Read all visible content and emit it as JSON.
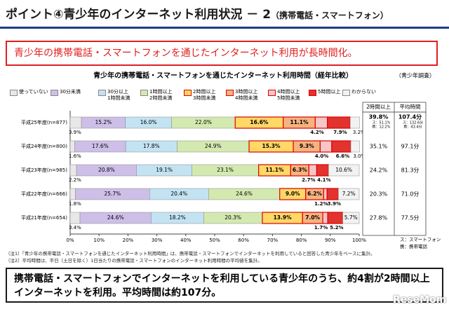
{
  "header": {
    "title": "ポイント④青少年のインターネット利用状況 － 2",
    "subtitle": "（携帯電話・スマートフォン）"
  },
  "headline": "青少年の携帯電話・スマートフォンを通じたインターネット利用が長時間化。",
  "chart_data": {
    "type": "bar",
    "orientation": "horizontal",
    "stacked": true,
    "title": "青少年の携帯電話・スマートフォンを通じたインターネット利用時間（経年比較）",
    "source": "（青少年調査）",
    "categories": [
      "平成25年度(n=877)",
      "平成24年度(n=800)",
      "平成23年度(n=985)",
      "平成22年度(n=666)",
      "平成21年度(n=654)"
    ],
    "series": [
      {
        "name": "使っていない",
        "color": "#e8e8e8",
        "values": [
          3.9,
          1.6,
          2.2,
          1.8,
          3.4
        ],
        "value_labels": [
          "3.9%",
          "1.6%",
          "2.2%",
          "1.8%",
          "3.4%"
        ]
      },
      {
        "name": "30分未満",
        "color": "#cdbfe8",
        "values": [
          15.2,
          17.6,
          20.8,
          25.7,
          24.6
        ],
        "value_labels": [
          "15.2%",
          "17.6%",
          "20.8%",
          "25.7%",
          "24.6%"
        ]
      },
      {
        "name": "30分以上\n1時間未満",
        "color": "#c3e3f3",
        "values": [
          16.0,
          17.8,
          19.1,
          20.4,
          18.2
        ],
        "value_labels": [
          "16.0%",
          "17.8%",
          "19.1%",
          "20.4%",
          "18.2%"
        ]
      },
      {
        "name": "1時間以上\n2時間未満",
        "color": "#d3e9b0",
        "values": [
          22.0,
          24.9,
          23.1,
          24.6,
          20.3
        ],
        "value_labels": [
          "22.0%",
          "24.9%",
          "23.1%",
          "24.6%",
          "20.3%"
        ]
      },
      {
        "name": "2時間以上\n3時間未満",
        "color": "#ffd866",
        "values": [
          16.6,
          15.3,
          11.1,
          9.0,
          13.9
        ],
        "value_labels": [
          "16.6%",
          "15.3%",
          "11.1%",
          "9.0%",
          "13.9%"
        ]
      },
      {
        "name": "3時間以上\n4時間未満",
        "color": "#f6b37f",
        "values": [
          11.1,
          9.3,
          6.3,
          6.2,
          7.0
        ],
        "value_labels": [
          "11.1%",
          "9.3%",
          "6.3%",
          "6.2%",
          "7.0%"
        ]
      },
      {
        "name": "4時間以上\n5時間未満",
        "color": "#f7c6c6",
        "values": [
          4.2,
          4.0,
          2.7,
          1.2,
          1.7
        ],
        "value_labels": [
          "4.2%",
          "4.0%",
          "2.7%",
          "1.2%",
          "1.7%"
        ]
      },
      {
        "name": "5時間以上",
        "color": "#e2332f",
        "values": [
          7.9,
          6.6,
          4.1,
          3.9,
          5.2
        ],
        "value_labels": [
          "7.9%",
          "6.6%",
          "4.1%",
          "3.9%",
          "5.2%"
        ]
      },
      {
        "name": "わからない",
        "color": "#f2f2f2",
        "values": [
          3.2,
          3.0,
          10.6,
          7.2,
          5.7
        ],
        "value_labels": [
          "3.2%",
          "3.0%",
          "10.6%",
          "7.2%",
          "5.7%"
        ]
      }
    ],
    "xlim": [
      0,
      100
    ],
    "xticks": [
      {
        "value": 0,
        "label": "0%"
      },
      {
        "value": 10,
        "label": "10%"
      },
      {
        "value": 20,
        "label": "20%"
      },
      {
        "value": 30,
        "label": "30%"
      },
      {
        "value": 40,
        "label": "40%"
      },
      {
        "value": 50,
        "label": "50%"
      },
      {
        "value": 60,
        "label": "60%"
      },
      {
        "value": 70,
        "label": "70%"
      },
      {
        "value": 80,
        "label": "80%"
      },
      {
        "value": 90,
        "label": "90%"
      },
      {
        "value": 100,
        "label": "100%"
      }
    ],
    "summary": {
      "columns": [
        "2時間以上",
        "平均時間"
      ],
      "rows": [
        [
          "39.8%",
          "107.4分"
        ],
        [
          "35.1%",
          "97.1分"
        ],
        [
          "24.2%",
          "81.3分"
        ],
        [
          "20.3%",
          "71.0分"
        ],
        [
          "27.8%",
          "77.5分"
        ]
      ],
      "details": [
        [
          "ス：51.1%",
          "携：12.2%"
        ],
        [
          "ス：132.6分",
          "携：43.4分"
        ]
      ]
    },
    "key": [
      "ス：スマートフォン",
      "携：携帯電話"
    ]
  },
  "notes": [
    "（注1）「青少年の携帯電話・スマートフォンを通じたインターネット利用時間」は、携帯電話・スマートフォンでインターネットを利用していると回答した青少年をベースに集計。",
    "（注2）平均時間は、平日（土日を除く）1日当たりの携帯電話・スマートフォンのインターネット利用時間の平均値を集計。"
  ],
  "conclusion": "携帯電話・スマートフォンでインターネットを利用している青少年のうち、約4割が2時間以上インターネットを利用。平均時間は約107分。",
  "logo": "ReseMom"
}
